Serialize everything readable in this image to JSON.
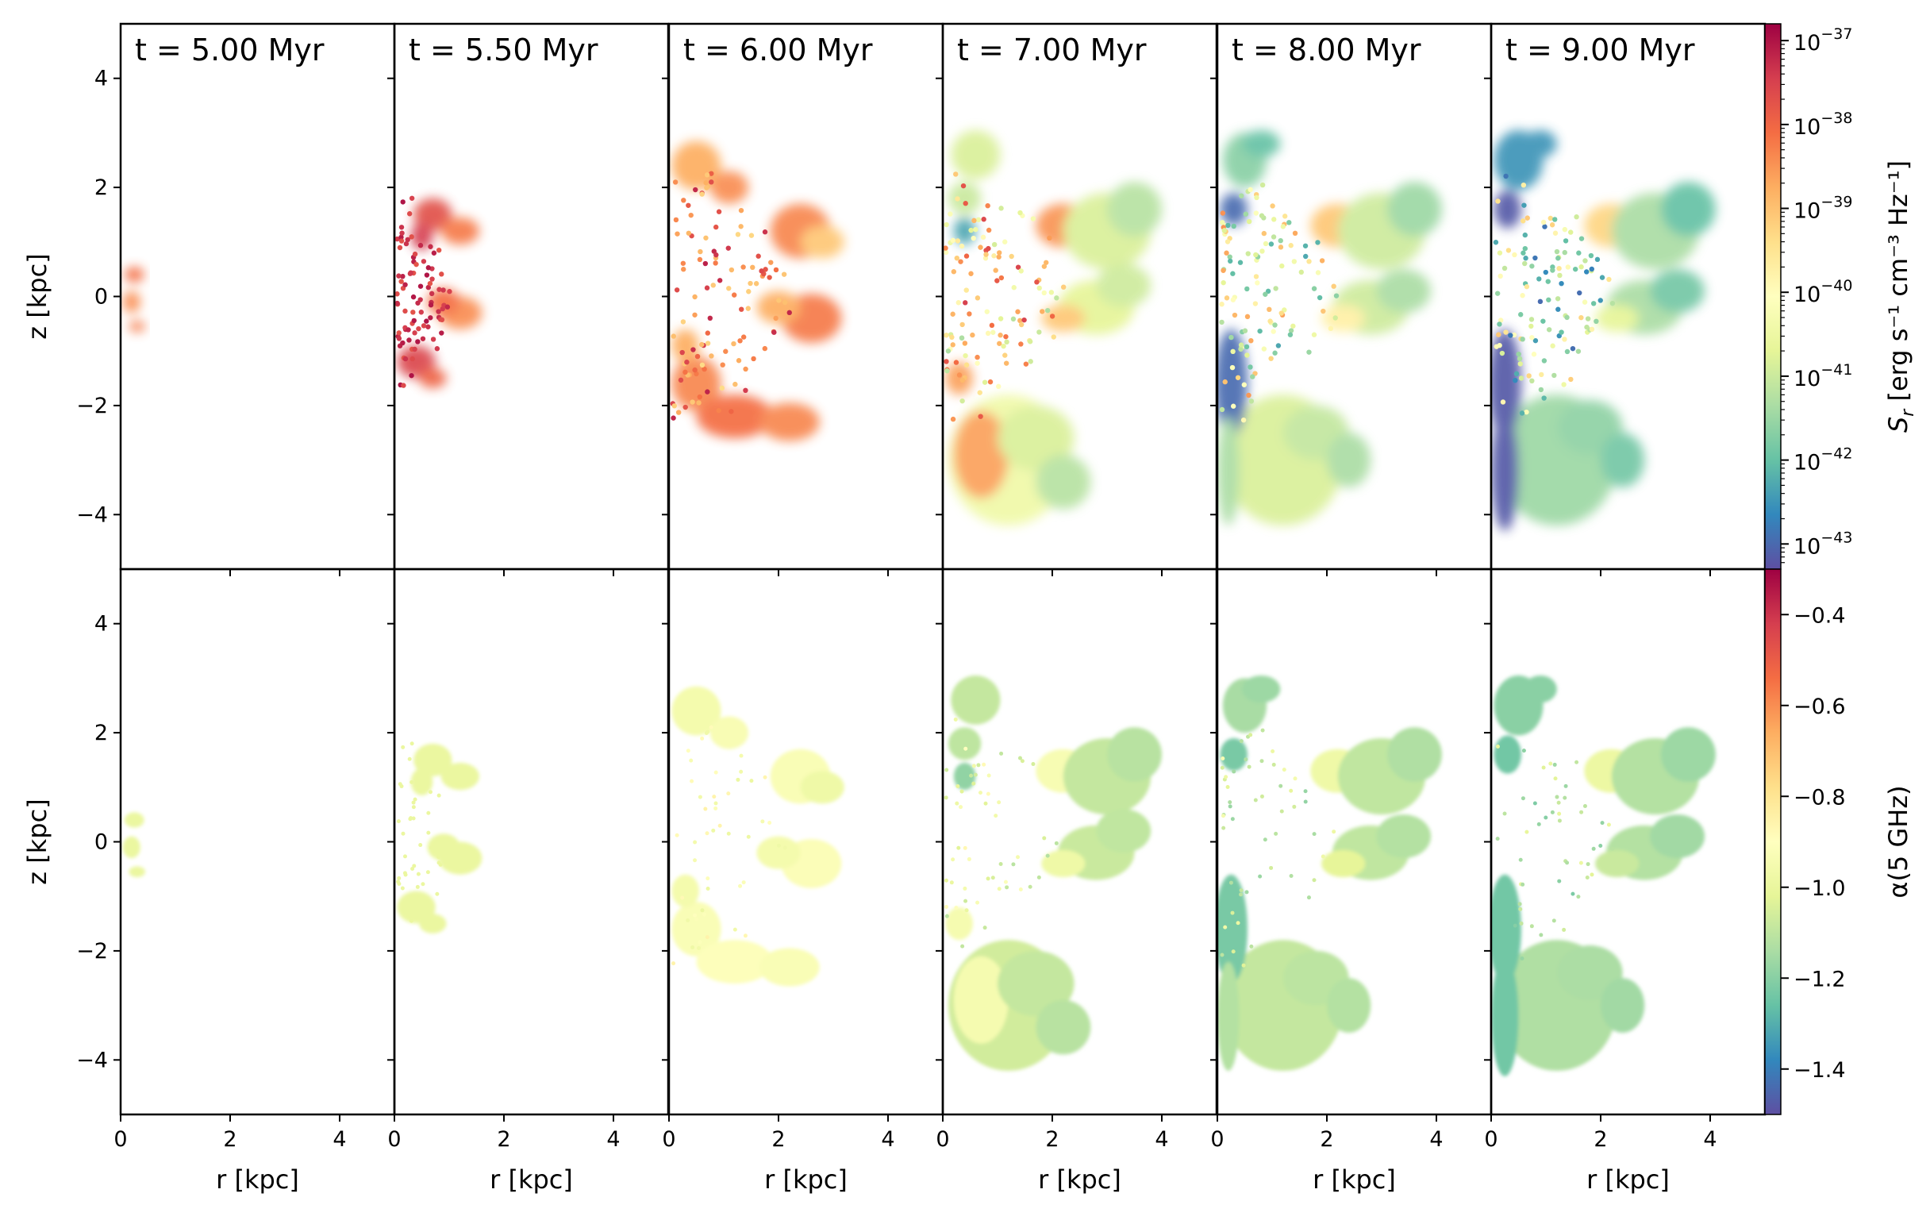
{
  "figure": {
    "type": "multi-panel colormap figure",
    "rows": [
      "synchrotron emissivity",
      "spectral index"
    ]
  },
  "chart_data": {
    "type": "heatmap",
    "panel_titles": [
      "t = 5.00 Myr",
      "t = 5.50 Myr",
      "t = 6.00 Myr",
      "t = 7.00 Myr",
      "t = 8.00 Myr",
      "t = 9.00 Myr"
    ],
    "times_myr": [
      5.0,
      5.5,
      6.0,
      7.0,
      8.0,
      9.0
    ],
    "xlabel": "r [kpc]",
    "ylabel": "z [kpc]",
    "xlim": [
      0,
      5
    ],
    "ylim": [
      -5,
      5
    ],
    "xticks": [
      0,
      2,
      4
    ],
    "xtick_labels": [
      "0",
      "2",
      "4"
    ],
    "yticks": [
      4,
      2,
      0,
      -2,
      -4
    ],
    "ytick_labels": [
      "4",
      "2",
      "0",
      "−2",
      "−4"
    ],
    "colormap": "Spectral",
    "colormap_stops": [
      "#5e4fa2",
      "#3288bd",
      "#66c2a5",
      "#abdda4",
      "#e6f598",
      "#ffffbf",
      "#fee08b",
      "#fdae61",
      "#f46d43",
      "#d53e4f",
      "#9e0142"
    ],
    "top_colorbar": {
      "label": "S_r [erg s^-1 cm^-3 Hz^-1]",
      "label_main": "S",
      "label_sub": "r",
      "label_rest": " [erg s⁻¹ cm⁻³ Hz⁻¹]",
      "scale": "log",
      "range_log10": [
        -43.3,
        -36.8
      ],
      "tick_exponents": [
        -37,
        -38,
        -39,
        -40,
        -41,
        -42,
        -43
      ],
      "tick_base": "10"
    },
    "bottom_colorbar": {
      "label": "α(5 GHz)",
      "scale": "linear",
      "range": [
        -1.5,
        -0.3
      ],
      "ticks": [
        -0.4,
        -0.6,
        -0.8,
        -1.0,
        -1.2,
        -1.4
      ],
      "tick_labels": [
        "−0.4",
        "−0.6",
        "−0.8",
        "−1.0",
        "−1.2",
        "−1.4"
      ]
    },
    "emission_regions_description": [
      "t=5.00: faint compact emission near r<0.5 kpc, |z|<0.6",
      "t=5.50: bright arcs r 0.1-1.6 kpc, z -1.7 to 1.8",
      "t=6.00: lobes reaching r~3.3 kpc, z -2.7 to 3",
      "t=7.00 to 9.00: extended lobes to r~3.9 kpc, z -4.6 to 3.1, progressively steeper spectra"
    ]
  }
}
